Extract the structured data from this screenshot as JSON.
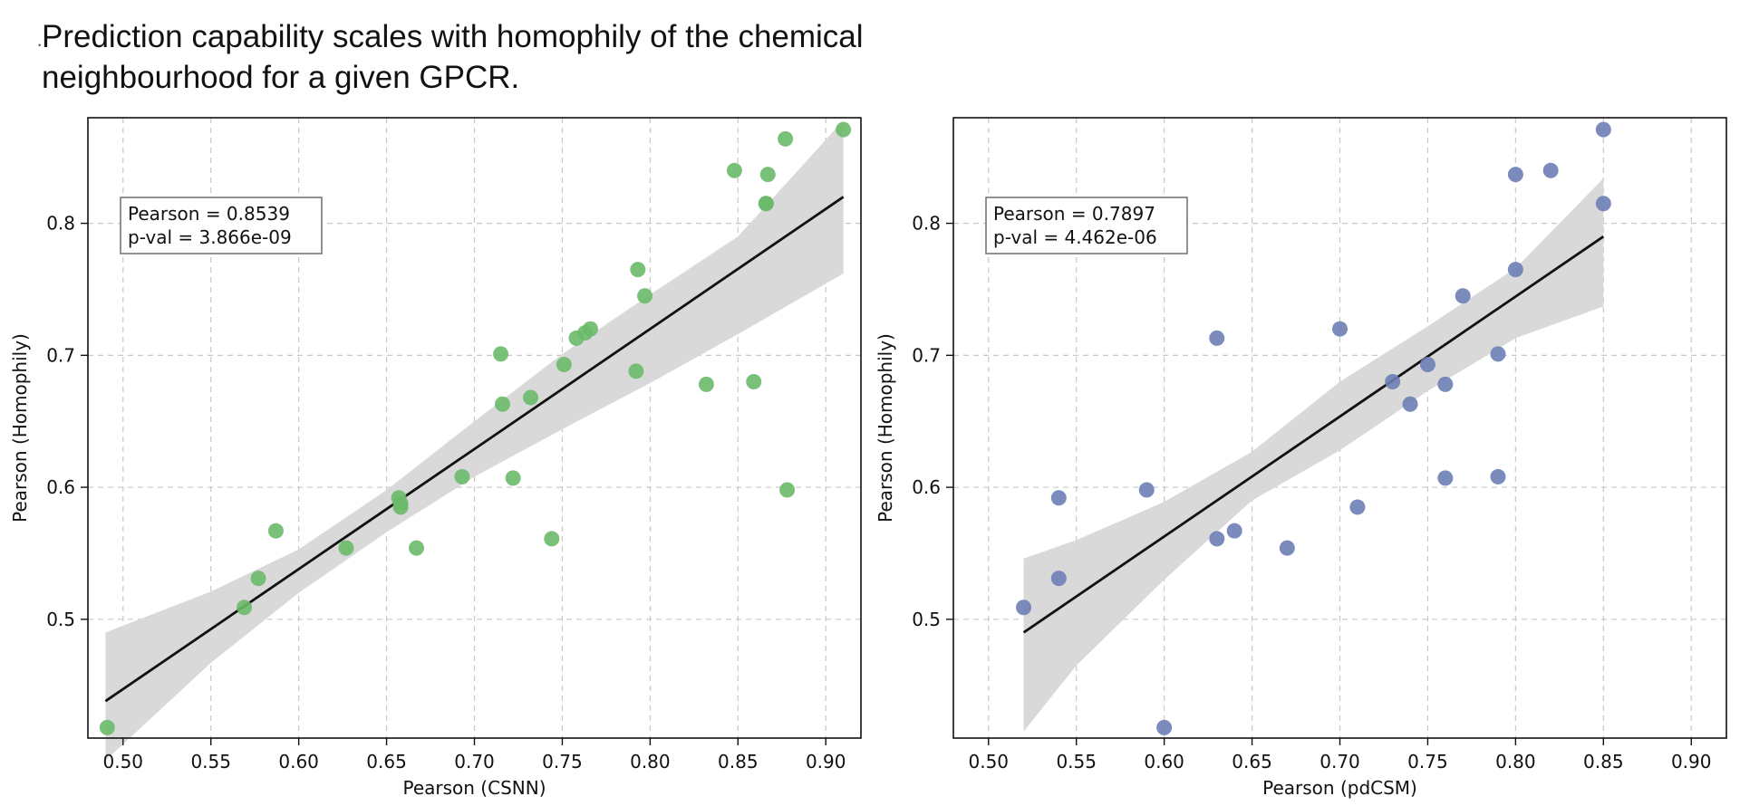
{
  "caption": {
    "mark": "·",
    "text": "Prediction capability scales with homophily of the chemical\nneighbourhood for a given GPCR."
  },
  "chart_data": [
    {
      "type": "scatter",
      "xlabel": "Pearson (CSNN)",
      "ylabel": "Pearson (Homophily)",
      "xlim": [
        0.48,
        0.92
      ],
      "ylim": [
        0.41,
        0.88
      ],
      "xticks": [
        0.5,
        0.55,
        0.6,
        0.65,
        0.7,
        0.75,
        0.8,
        0.85,
        0.9
      ],
      "yticks": [
        0.5,
        0.6,
        0.7,
        0.8
      ],
      "grid": true,
      "point_color": "#6aba6a",
      "annotation": [
        "Pearson = 0.8539",
        "p-val = 3.866e-09"
      ],
      "fit_line": [
        [
          0.49,
          0.438
        ],
        [
          0.91,
          0.82
        ]
      ],
      "ci_band": {
        "x": [
          0.49,
          0.55,
          0.6,
          0.65,
          0.7,
          0.75,
          0.8,
          0.85,
          0.91
        ],
        "upper": [
          0.49,
          0.521,
          0.553,
          0.598,
          0.65,
          0.701,
          0.746,
          0.79,
          0.878
        ],
        "lower": [
          0.393,
          0.467,
          0.52,
          0.566,
          0.608,
          0.644,
          0.679,
          0.716,
          0.762
        ]
      },
      "x": [
        0.491,
        0.569,
        0.577,
        0.587,
        0.627,
        0.657,
        0.658,
        0.658,
        0.667,
        0.693,
        0.715,
        0.716,
        0.722,
        0.732,
        0.744,
        0.751,
        0.758,
        0.763,
        0.766,
        0.792,
        0.793,
        0.797,
        0.832,
        0.848,
        0.859,
        0.866,
        0.866,
        0.867,
        0.877,
        0.878,
        0.91
      ],
      "y": [
        0.418,
        0.509,
        0.531,
        0.567,
        0.554,
        0.592,
        0.588,
        0.585,
        0.554,
        0.608,
        0.701,
        0.663,
        0.607,
        0.668,
        0.561,
        0.693,
        0.713,
        0.717,
        0.72,
        0.688,
        0.765,
        0.745,
        0.678,
        0.84,
        0.68,
        0.815,
        0.815,
        0.837,
        0.864,
        0.598,
        0.871
      ]
    },
    {
      "type": "scatter",
      "xlabel": "Pearson (pdCSM)",
      "ylabel": "Pearson (Homophily)",
      "xlim": [
        0.48,
        0.92
      ],
      "ylim": [
        0.41,
        0.88
      ],
      "xticks": [
        0.5,
        0.55,
        0.6,
        0.65,
        0.7,
        0.75,
        0.8,
        0.85,
        0.9
      ],
      "yticks": [
        0.5,
        0.6,
        0.7,
        0.8
      ],
      "grid": true,
      "point_color": "#6c7eb5",
      "annotation": [
        "Pearson = 0.7897",
        "p-val = 4.462e-06"
      ],
      "fit_line": [
        [
          0.52,
          0.49
        ],
        [
          0.85,
          0.79
        ]
      ],
      "ci_band": {
        "x": [
          0.52,
          0.55,
          0.6,
          0.65,
          0.7,
          0.75,
          0.8,
          0.85
        ],
        "upper": [
          0.546,
          0.56,
          0.589,
          0.627,
          0.68,
          0.722,
          0.766,
          0.834
        ],
        "lower": [
          0.415,
          0.465,
          0.53,
          0.59,
          0.628,
          0.673,
          0.713,
          0.737
        ]
      },
      "x": [
        0.52,
        0.54,
        0.54,
        0.59,
        0.6,
        0.63,
        0.63,
        0.64,
        0.67,
        0.7,
        0.71,
        0.73,
        0.74,
        0.75,
        0.76,
        0.76,
        0.77,
        0.79,
        0.79,
        0.8,
        0.8,
        0.82,
        0.85,
        0.85
      ],
      "y": [
        0.509,
        0.531,
        0.592,
        0.598,
        0.418,
        0.713,
        0.561,
        0.567,
        0.554,
        0.72,
        0.585,
        0.68,
        0.663,
        0.693,
        0.678,
        0.607,
        0.745,
        0.701,
        0.608,
        0.765,
        0.837,
        0.84,
        0.871,
        0.815
      ]
    }
  ]
}
